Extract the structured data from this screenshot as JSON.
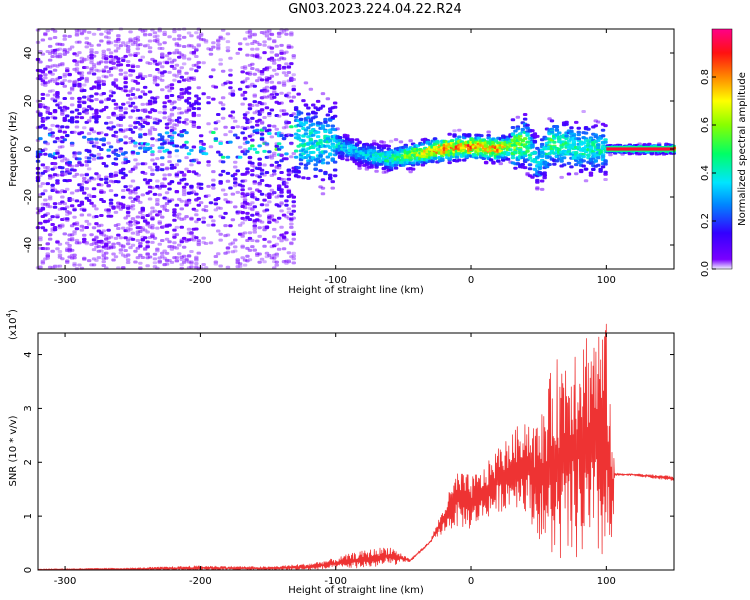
{
  "page": {
    "title": "GN03.2023.224.04.22.R24"
  },
  "chart_data": [
    {
      "type": "heatmap",
      "xlabel": "Height of straight line (km)",
      "ylabel": "Frequency (Hz)",
      "xlim": [
        -320,
        150
      ],
      "ylim": [
        -50,
        50
      ],
      "xticks": [
        -300,
        -200,
        -100,
        0,
        100
      ],
      "yticks": [
        -40,
        -20,
        0,
        20,
        40
      ],
      "xtick_labels": [
        "-300",
        "-200",
        "-100",
        "0",
        "100"
      ],
      "ytick_labels": [
        "-40",
        "-20",
        "0",
        "20",
        "40"
      ],
      "colorbar": {
        "label": "Normalized spectral amplitude",
        "range": [
          0,
          1
        ],
        "ticks": [
          0.0,
          0.2,
          0.4,
          0.6,
          0.8
        ],
        "tick_labels": [
          "0.0",
          "0.2",
          "0.4",
          "0.6",
          "0.8"
        ],
        "colormap": "rainbow (purple-blue-cyan-green-yellow-red-magenta)"
      },
      "ridge": {
        "description": "Dominant frequency ridge",
        "x": [
          -320,
          -200,
          -130,
          -100,
          -80,
          -60,
          -40,
          -20,
          0,
          20,
          30,
          40,
          50,
          60,
          80,
          100,
          150
        ],
        "frequency": [
          0,
          1,
          4,
          2,
          -2,
          -4,
          -2,
          0,
          1,
          0,
          1,
          3,
          -6,
          3,
          0,
          0,
          0
        ],
        "peak_amplitude": [
          0.15,
          0.3,
          0.5,
          0.45,
          0.4,
          0.55,
          0.75,
          0.95,
          0.95,
          0.9,
          0.7,
          0.65,
          0.4,
          0.6,
          0.5,
          0.5,
          1.0
        ]
      }
    },
    {
      "type": "line",
      "xlabel": "Height of straight line (km)",
      "ylabel": "SNR (10 * v/v)",
      "y_multiplier_label": "(x10",
      "y_multiplier_exp": "4",
      "xlim": [
        -320,
        150
      ],
      "ylim": [
        0,
        4.4
      ],
      "xticks": [
        -300,
        -200,
        -100,
        0,
        100
      ],
      "yticks": [
        0,
        1,
        2,
        3,
        4
      ],
      "xtick_labels": [
        "-300",
        "-200",
        "-100",
        "0",
        "100"
      ],
      "ytick_labels": [
        "0",
        "1",
        "2",
        "3",
        "4"
      ],
      "color": "#ee3333",
      "envelope": {
        "x": [
          -320,
          -250,
          -200,
          -150,
          -120,
          -100,
          -90,
          -75,
          -60,
          -45,
          -30,
          -20,
          -10,
          0,
          10,
          20,
          30,
          40,
          50,
          60,
          70,
          80,
          90,
          100,
          105,
          106,
          120,
          150
        ],
        "low": [
          0.0,
          0.0,
          0.0,
          0.0,
          0.0,
          0.02,
          0.03,
          0.04,
          0.08,
          0.15,
          0.5,
          0.7,
          0.8,
          0.75,
          0.95,
          1.05,
          1.2,
          1.1,
          0.6,
          0.15,
          0.1,
          0.15,
          0.1,
          0.1,
          0.2,
          1.75,
          1.75,
          1.65
        ],
        "high": [
          0.02,
          0.04,
          0.08,
          0.06,
          0.12,
          0.22,
          0.3,
          0.38,
          0.45,
          0.2,
          0.55,
          1.2,
          1.85,
          1.75,
          1.9,
          2.3,
          2.5,
          2.9,
          2.7,
          3.8,
          4.2,
          4.5,
          4.6,
          4.6,
          2.5,
          1.8,
          1.79,
          1.75
        ]
      }
    }
  ]
}
